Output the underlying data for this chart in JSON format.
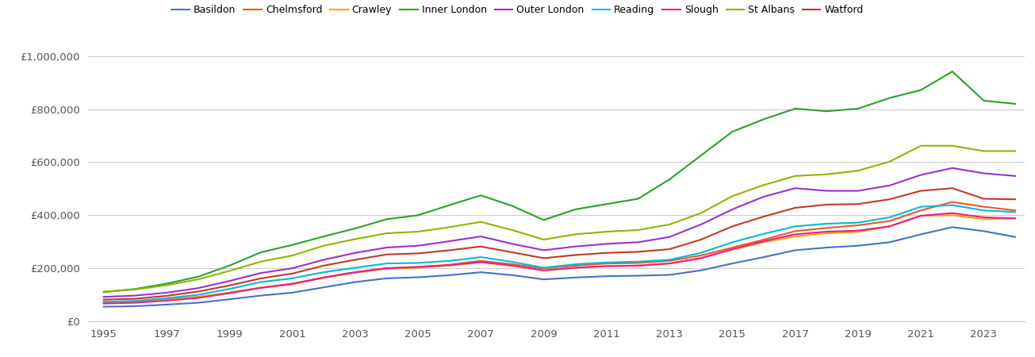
{
  "years": [
    1995,
    1996,
    1997,
    1998,
    1999,
    2000,
    2001,
    2002,
    2003,
    2004,
    2005,
    2006,
    2007,
    2008,
    2009,
    2010,
    2011,
    2012,
    2013,
    2014,
    2015,
    2016,
    2017,
    2018,
    2019,
    2020,
    2021,
    2022,
    2023,
    2024
  ],
  "series": {
    "Basildon": [
      55000,
      57000,
      63000,
      70000,
      83000,
      97000,
      108000,
      128000,
      148000,
      162000,
      166000,
      174000,
      185000,
      174000,
      158000,
      165000,
      170000,
      172000,
      175000,
      192000,
      218000,
      242000,
      268000,
      278000,
      285000,
      298000,
      328000,
      355000,
      340000,
      318000
    ],
    "Chelmsford": [
      72000,
      75000,
      83000,
      92000,
      108000,
      127000,
      140000,
      165000,
      185000,
      200000,
      205000,
      213000,
      228000,
      215000,
      200000,
      210000,
      218000,
      220000,
      228000,
      248000,
      278000,
      308000,
      340000,
      352000,
      362000,
      378000,
      418000,
      450000,
      432000,
      418000
    ],
    "Crawley": [
      72000,
      75000,
      83000,
      92000,
      108000,
      127000,
      140000,
      165000,
      183000,
      198000,
      202000,
      210000,
      222000,
      210000,
      192000,
      202000,
      208000,
      210000,
      218000,
      238000,
      270000,
      298000,
      320000,
      332000,
      337000,
      358000,
      398000,
      400000,
      385000,
      388000
    ],
    "Inner London": [
      110000,
      122000,
      142000,
      168000,
      210000,
      260000,
      288000,
      320000,
      350000,
      385000,
      400000,
      438000,
      475000,
      435000,
      382000,
      422000,
      442000,
      462000,
      535000,
      625000,
      715000,
      762000,
      802000,
      792000,
      802000,
      842000,
      872000,
      942000,
      832000,
      820000
    ],
    "Outer London": [
      92000,
      97000,
      108000,
      125000,
      152000,
      182000,
      200000,
      232000,
      258000,
      278000,
      285000,
      302000,
      320000,
      292000,
      268000,
      282000,
      292000,
      298000,
      318000,
      365000,
      422000,
      470000,
      502000,
      492000,
      492000,
      512000,
      552000,
      578000,
      558000,
      548000
    ],
    "Reading": [
      74000,
      77000,
      87000,
      100000,
      122000,
      148000,
      162000,
      185000,
      202000,
      218000,
      220000,
      228000,
      242000,
      224000,
      202000,
      215000,
      222000,
      225000,
      232000,
      258000,
      298000,
      330000,
      358000,
      368000,
      372000,
      392000,
      432000,
      438000,
      418000,
      412000
    ],
    "Slough": [
      67000,
      70000,
      78000,
      88000,
      106000,
      126000,
      142000,
      165000,
      185000,
      200000,
      205000,
      212000,
      224000,
      210000,
      192000,
      202000,
      208000,
      210000,
      218000,
      238000,
      272000,
      302000,
      328000,
      338000,
      342000,
      358000,
      398000,
      408000,
      392000,
      388000
    ],
    "St Albans": [
      112000,
      120000,
      136000,
      158000,
      190000,
      225000,
      248000,
      285000,
      310000,
      332000,
      338000,
      355000,
      375000,
      344000,
      308000,
      328000,
      338000,
      344000,
      365000,
      408000,
      472000,
      514000,
      548000,
      554000,
      568000,
      602000,
      662000,
      662000,
      642000,
      642000
    ],
    "Watford": [
      82000,
      85000,
      96000,
      112000,
      135000,
      162000,
      180000,
      210000,
      232000,
      252000,
      256000,
      268000,
      282000,
      260000,
      238000,
      250000,
      258000,
      262000,
      272000,
      308000,
      358000,
      395000,
      428000,
      440000,
      442000,
      460000,
      492000,
      502000,
      462000,
      460000
    ]
  },
  "colors": {
    "Basildon": "#4472c4",
    "Chelmsford": "#e8572a",
    "Crawley": "#f0a500",
    "Inner London": "#2ca02c",
    "Outer London": "#9b30d0",
    "Reading": "#00bcd4",
    "Slough": "#e91e8c",
    "St Albans": "#8db600",
    "Watford": "#c0392b"
  },
  "ylim": [
    0,
    1050000
  ],
  "yticks": [
    0,
    200000,
    400000,
    600000,
    800000,
    1000000
  ],
  "xticks": [
    1995,
    1997,
    1999,
    2001,
    2003,
    2005,
    2007,
    2009,
    2011,
    2013,
    2015,
    2017,
    2019,
    2021,
    2023
  ],
  "xlim": [
    1994.5,
    2024.3
  ],
  "background_color": "#ffffff",
  "grid_color": "#cccccc",
  "linewidth": 1.5,
  "legend_fontsize": 9.0,
  "tick_fontsize": 9.5
}
